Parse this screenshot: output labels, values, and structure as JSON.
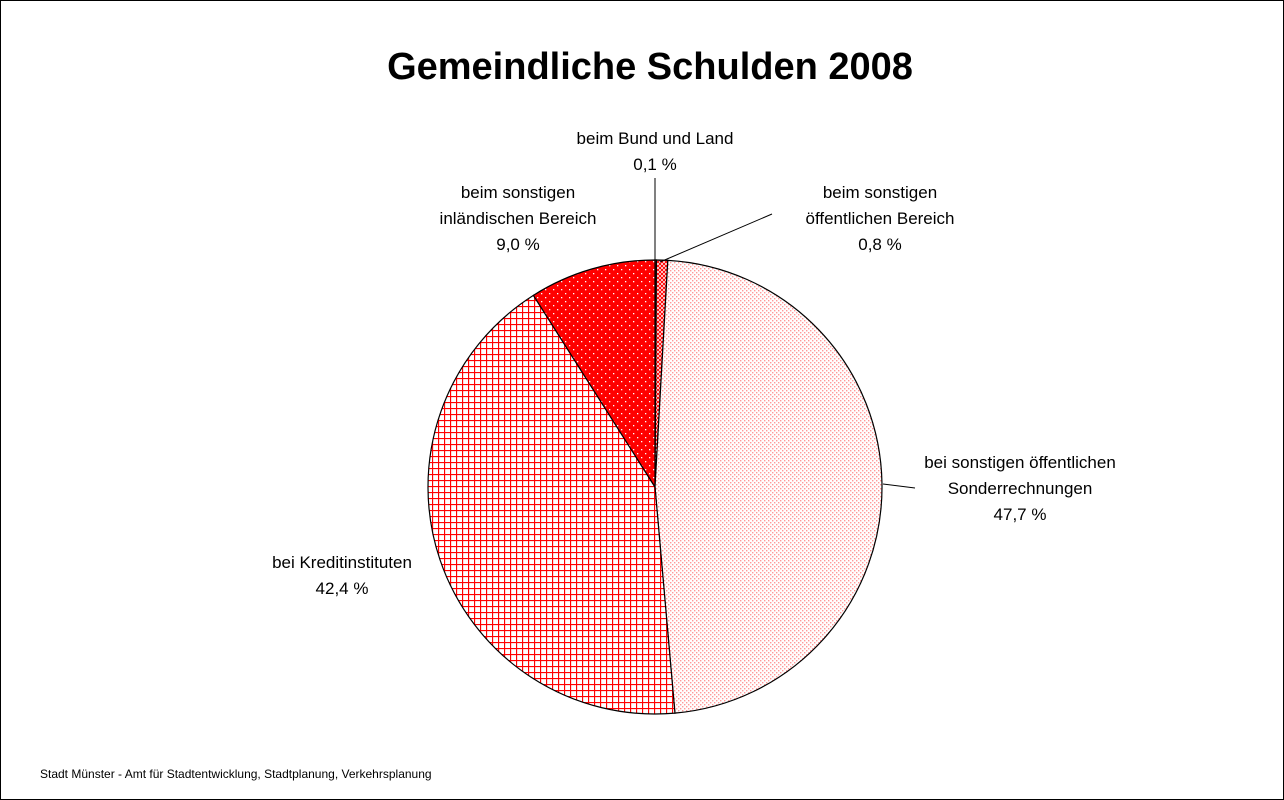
{
  "chart_data": {
    "type": "pie",
    "title": "Gemeindliche Schulden 2008",
    "categories": [
      "beim Bund und Land",
      "beim sonstigen öffentlichen Bereich",
      "bei sonstigen öffentlichen Sonderrechnungen",
      "bei Kreditinstituten",
      "beim sonstigen inländischen Bereich"
    ],
    "values": [
      0.1,
      0.8,
      47.7,
      42.4,
      9.0
    ],
    "value_labels": [
      "0,1 %",
      "0,8 %",
      "47,7 %",
      "42,4 %",
      "9,0 %"
    ],
    "colors": [
      "#ff0000",
      "#ff0000",
      "#ff9999",
      "#ff0000",
      "#ff0000"
    ],
    "source": "Stadt Münster - Amt für Stadtentwicklung, Stadtplanung, Verkehrsplanung"
  }
}
